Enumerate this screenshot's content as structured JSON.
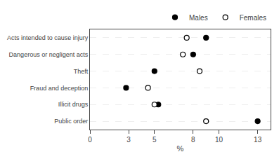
{
  "chart_data": {
    "type": "dot",
    "categories": [
      "Acts intended to cause injury",
      "Dangerous or negligent acts",
      "Theft",
      "Fraud and deception",
      "Illicit drugs",
      "Public order"
    ],
    "series": [
      {
        "name": "Males",
        "color": "#000000",
        "marker": "circle",
        "values": [
          9.0,
          8.0,
          5.0,
          2.8,
          5.3,
          13.0
        ]
      },
      {
        "name": "Females",
        "color": "#000000",
        "marker": "circle-open",
        "values": [
          7.5,
          7.2,
          8.5,
          4.5,
          5.0,
          9.0
        ]
      }
    ],
    "x_label": "%",
    "xlim": [
      0,
      14
    ],
    "xticks": [
      0,
      3,
      5,
      8,
      10,
      13
    ],
    "grid": true,
    "legend": "upper right"
  }
}
